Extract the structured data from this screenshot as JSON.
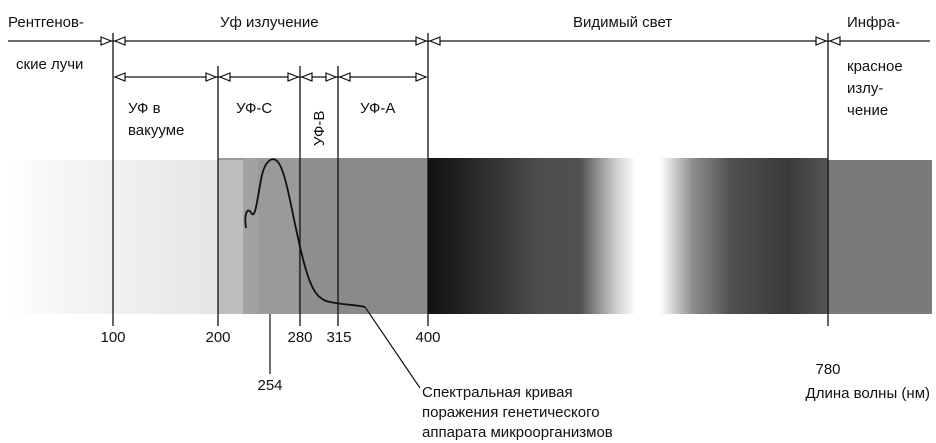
{
  "regions": {
    "xray": {
      "line1": "Рентгенов-",
      "line2": "ские лучи"
    },
    "uv": "Уф излучение",
    "visible": "Видимый свет",
    "infrared": {
      "line1": "Инфра-",
      "line2": "красное",
      "line3": "излу-",
      "line4": "чение"
    }
  },
  "uv_subbands": {
    "vacuum": {
      "line1": "УФ в",
      "line2": "вакууме"
    },
    "uvc": "УФ-С",
    "uvb": "УФ-В",
    "uva": "УФ-А"
  },
  "ticks": [
    "100",
    "200",
    "280",
    "315",
    "400",
    "780"
  ],
  "peak_label": "254",
  "axis_label": "Длина волны (нм)",
  "curve_label": {
    "line1": "Спектральная кривая",
    "line2": "поражения генетического",
    "line3": "аппарата микроорганизмов"
  },
  "colors": {
    "ink": "#111111",
    "uv_band": "#9a9a9a",
    "ir_band": "#7a7a7a"
  }
}
